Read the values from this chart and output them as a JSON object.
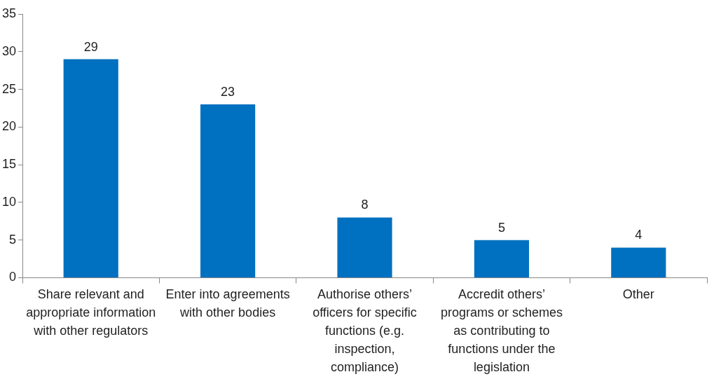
{
  "chart_data": {
    "type": "bar",
    "categories": [
      "Share relevant and appropriate information with other regulators",
      "Enter into agreements with other bodies",
      "Authorise others’ officers for specific functions (e.g. inspection, compliance)",
      "Accredit others’ programs or schemes as contributing to functions under the legislation",
      "Other"
    ],
    "values": [
      29,
      23,
      8,
      5,
      4
    ],
    "color": "#0070c0",
    "ylim": [
      0,
      35
    ],
    "yticks": [
      0,
      5,
      10,
      15,
      20,
      25,
      30,
      35
    ],
    "grid": false,
    "legend": false,
    "data_labels": true
  }
}
